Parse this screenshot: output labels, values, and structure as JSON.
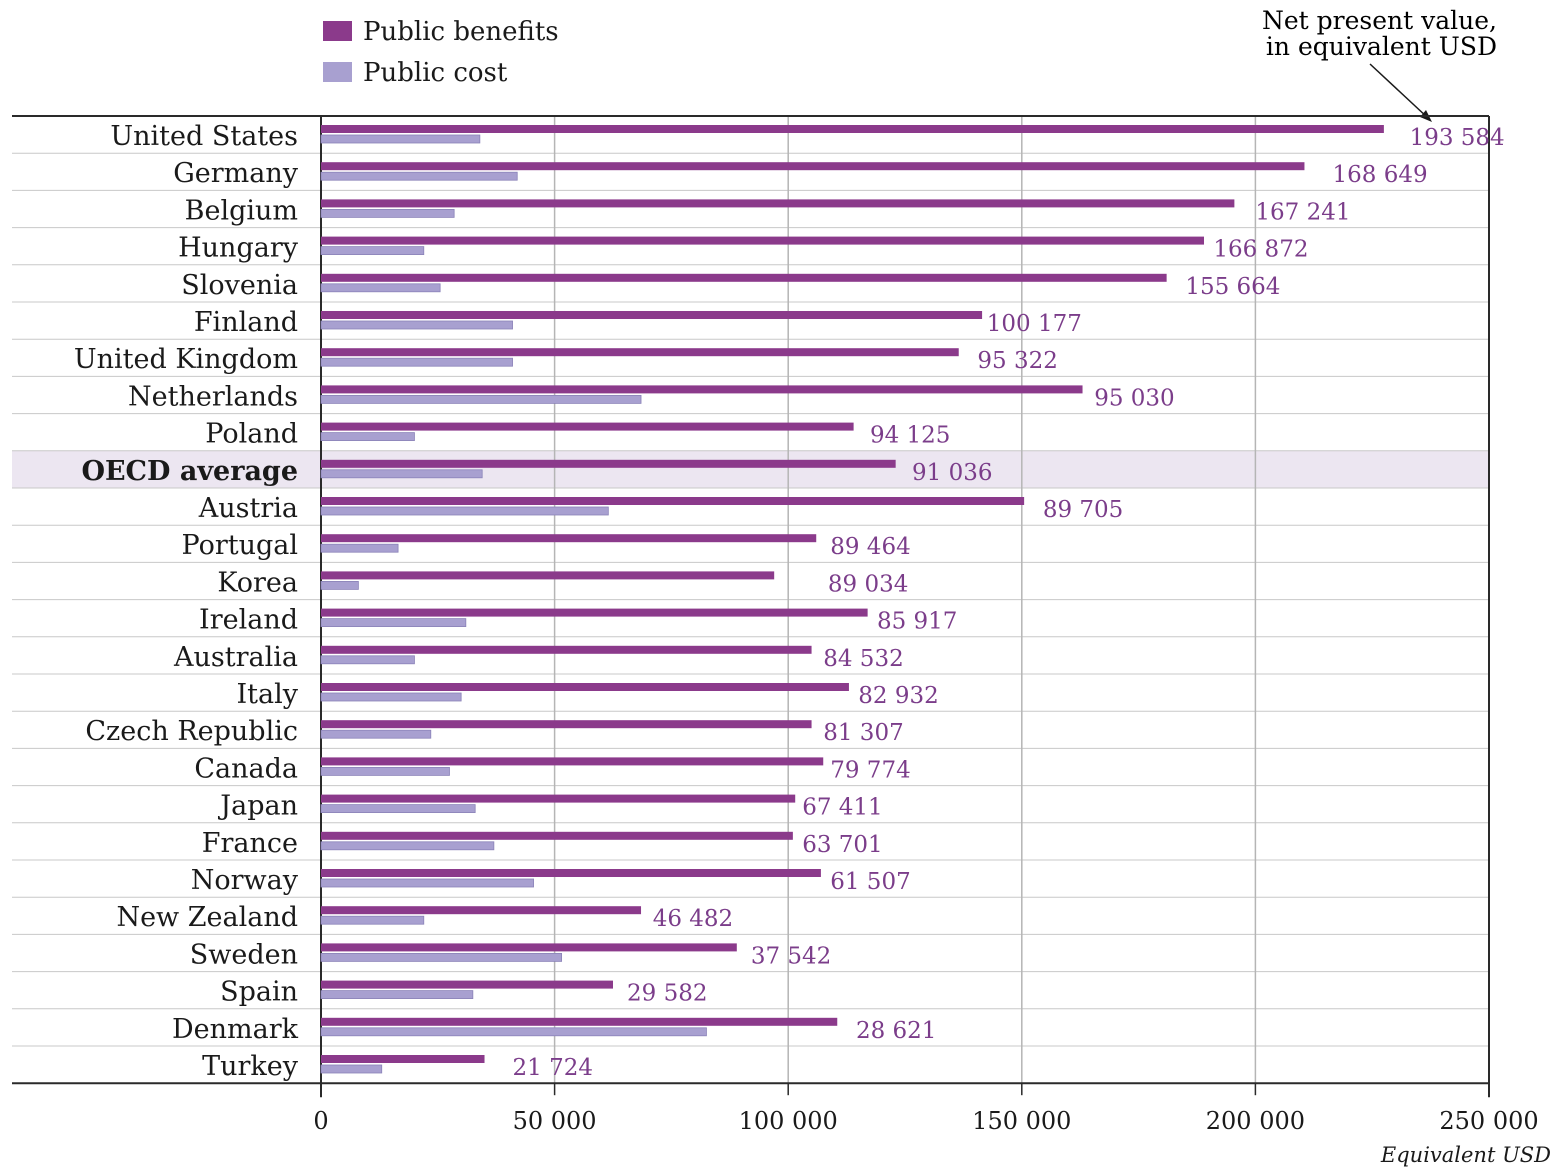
{
  "chart_data": {
    "type": "bar",
    "orientation": "horizontal",
    "categories": [
      "United States",
      "Germany",
      "Belgium",
      "Hungary",
      "Slovenia",
      "Finland",
      "United Kingdom",
      "Netherlands",
      "Poland",
      "OECD average",
      "Austria",
      "Portugal",
      "Korea",
      "Ireland",
      "Australia",
      "Italy",
      "Czech Republic",
      "Canada",
      "Japan",
      "France",
      "Norway",
      "New Zealand",
      "Sweden",
      "Spain",
      "Denmark",
      "Turkey"
    ],
    "highlight_category": "OECD average",
    "series": [
      {
        "name": "Public benefits",
        "color": "#8b3a8b",
        "values": [
          227500,
          210500,
          195500,
          189000,
          181000,
          141500,
          136500,
          163000,
          114000,
          123000,
          150500,
          106000,
          97000,
          117000,
          105000,
          113000,
          105000,
          107500,
          101500,
          101000,
          107000,
          68500,
          89000,
          62500,
          110500,
          35000
        ]
      },
      {
        "name": "Public cost",
        "color": "#a8a0d0",
        "values": [
          34000,
          42000,
          28500,
          22000,
          25500,
          41000,
          41000,
          68500,
          20000,
          34500,
          61500,
          16500,
          8000,
          31000,
          20000,
          30000,
          23500,
          27500,
          33000,
          37000,
          45500,
          22000,
          51500,
          32500,
          82500,
          13000
        ]
      }
    ],
    "net_present_values": [
      "193 584",
      "168 649",
      "167 241",
      "166 872",
      "155 664",
      "100 177",
      "95 322",
      "95 030",
      "94 125",
      "91 036",
      "89 705",
      "89 464",
      "89 034",
      "85 917",
      "84 532",
      "82 932",
      "81 307",
      "79 774",
      "67 411",
      "63 701",
      "61 507",
      "46 482",
      "37 542",
      "29 582",
      "28 621",
      "21 724"
    ],
    "value_label_positions": [
      233000,
      216500,
      200000,
      191000,
      185000,
      142500,
      140500,
      165500,
      117500,
      126500,
      154500,
      109000,
      108500,
      119000,
      107500,
      115000,
      107500,
      109000,
      103000,
      103000,
      109000,
      71000,
      92000,
      65500,
      114500,
      41000
    ],
    "net_value_color": "#7b3d8a",
    "xlim": [
      0,
      250000
    ],
    "xticks": [
      0,
      50000,
      100000,
      150000,
      200000,
      250000
    ],
    "xtick_labels": [
      "0",
      "50 000",
      "100 000",
      "150 000",
      "200 000",
      "250 000"
    ],
    "xlabel": "Equivalent USD",
    "annotation": [
      "Net present value,",
      "in equivalent USD"
    ],
    "legend_position": "top-left",
    "grid": true
  }
}
